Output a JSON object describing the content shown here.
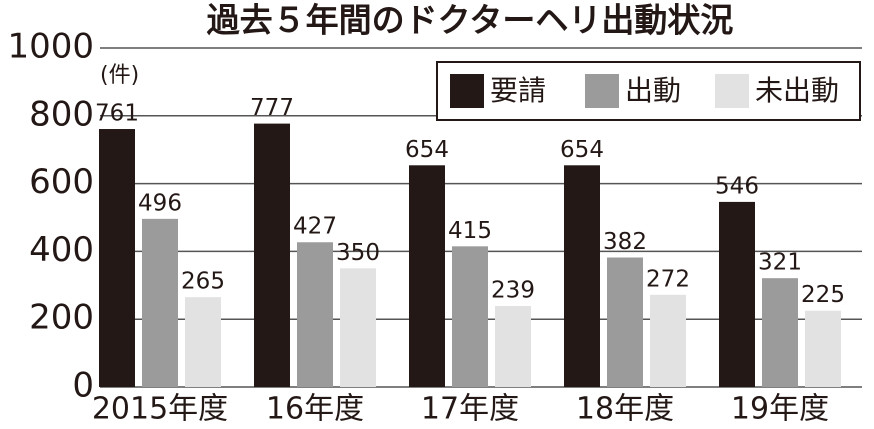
{
  "chart_data": {
    "type": "bar",
    "title": "過去５年間のドクターヘリ出動状況",
    "unit": "(件)",
    "categories": [
      "2015年度",
      "16年度",
      "17年度",
      "18年度",
      "19年度"
    ],
    "series": [
      {
        "name": "要請",
        "color": "#231815",
        "values": [
          761,
          777,
          654,
          654,
          546
        ]
      },
      {
        "name": "出動",
        "color": "#9b9b9b",
        "values": [
          496,
          427,
          415,
          382,
          321
        ]
      },
      {
        "name": "未出動",
        "color": "#e2e2e2",
        "values": [
          265,
          350,
          239,
          272,
          225
        ]
      }
    ],
    "ylim": [
      0,
      1000
    ],
    "yticks": [
      0,
      200,
      400,
      600,
      800,
      1000
    ],
    "grid": true,
    "legend": "upper right"
  }
}
